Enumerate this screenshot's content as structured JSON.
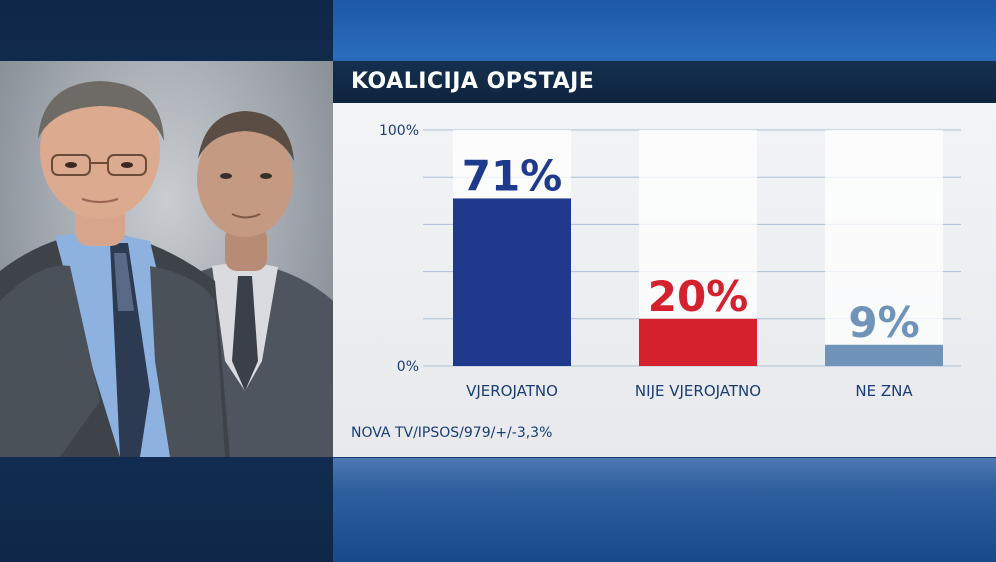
{
  "title": "KOALICIJA OPSTAJE",
  "source": "NOVA TV/IPSOS/979/+/-3,3%",
  "chart_data": {
    "type": "bar",
    "title": "KOALICIJA OPSTAJE",
    "categories": [
      "VJEROJATNO",
      "NIJE VJEROJATNO",
      "NE ZNA"
    ],
    "values": [
      71,
      20,
      9
    ],
    "value_labels": [
      "71%",
      "20%",
      "9%"
    ],
    "colors": [
      "#1f3a8c",
      "#d5202e",
      "#6f93b9"
    ],
    "ylim": [
      0,
      100
    ],
    "y_tick_labels": [
      "0%",
      "100%"
    ],
    "grid": true,
    "xlabel": "",
    "ylabel": ""
  }
}
